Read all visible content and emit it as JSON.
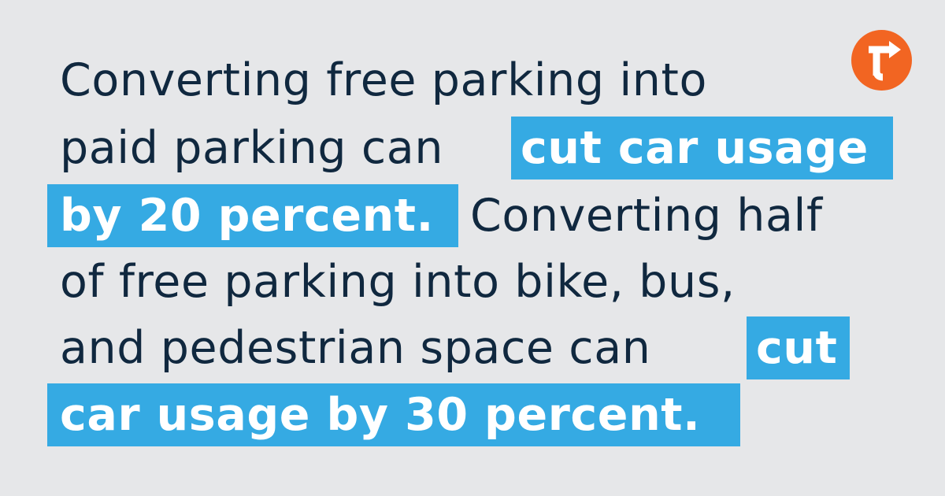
{
  "brand": {
    "logo_icon": "turn-right-arrow-icon",
    "logo_color": "#f26522"
  },
  "colors": {
    "background": "#e6e7e9",
    "text": "#10283f",
    "highlight": "#35aae3",
    "highlight_text": "#ffffff"
  },
  "quote": {
    "line1": "Converting free parking into",
    "line2_plain": "paid parking can",
    "line2_highlight": "cut car usage",
    "line3_highlight": "by 20 percent.",
    "line3_plain": "Converting half",
    "line4": "of free parking into bike, bus,",
    "line5_plain": "and pedestrian space can",
    "line5_highlight": "cut",
    "line6_highlight": "car usage by 30 percent."
  }
}
